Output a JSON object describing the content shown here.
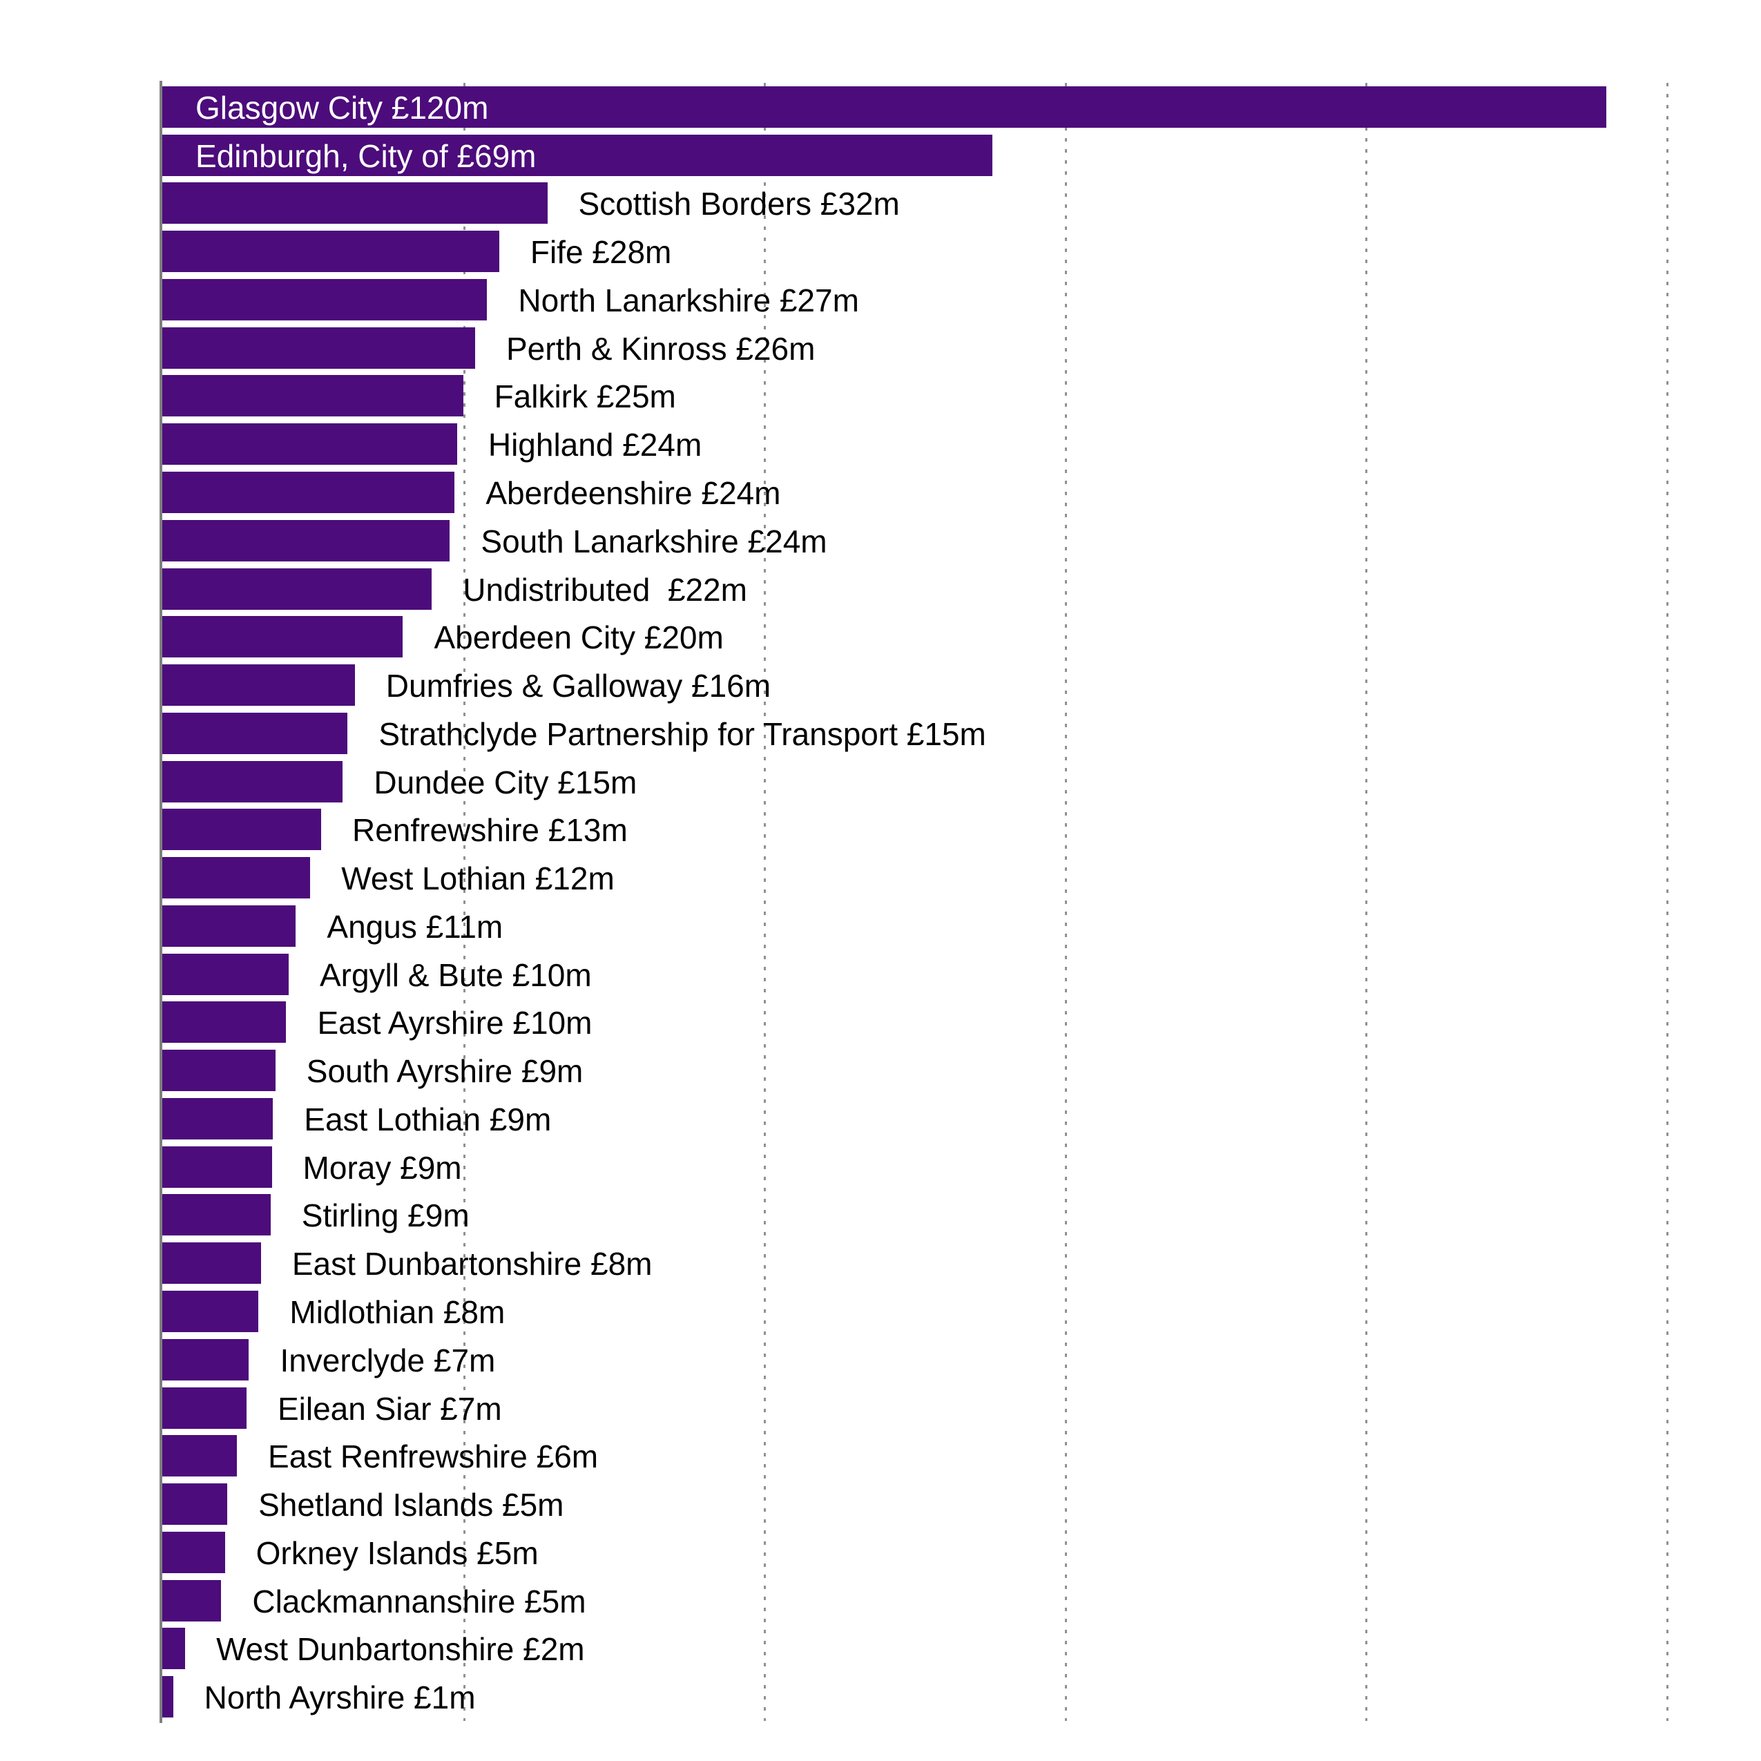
{
  "chart_data": {
    "type": "bar",
    "orientation": "horizontal",
    "title": "",
    "xlabel": "",
    "ylabel": "",
    "xlim": [
      0,
      130
    ],
    "x_gridlines": [
      25,
      50,
      75,
      100,
      125
    ],
    "gridline_style": "dotted",
    "legend": "none",
    "categories": [
      "Glasgow City",
      "Edinburgh, City of",
      "Scottish Borders",
      "Fife",
      "North Lanarkshire",
      "Perth & Kinross",
      "Falkirk",
      "Highland",
      "Aberdeenshire",
      "South Lanarkshire",
      "Undistributed",
      "Aberdeen City",
      "Dumfries & Galloway",
      "Strathclyde Partnership for Transport",
      "Dundee City",
      "Renfrewshire",
      "West Lothian",
      "Angus",
      "Argyll & Bute",
      "East Ayrshire",
      "South Ayrshire",
      "East Lothian",
      "Moray",
      "Stirling",
      "East Dunbartonshire",
      "Midlothian",
      "Inverclyde",
      "Eilean Siar",
      "East Renfrewshire",
      "Shetland Islands",
      "Orkney Islands",
      "Clackmannanshire",
      "West Dunbartonshire",
      "North Ayrshire"
    ],
    "values": [
      120,
      69,
      32,
      28,
      27,
      26,
      25,
      24.5,
      24.3,
      23.9,
      22.4,
      20,
      16,
      15.4,
      15,
      13.2,
      12.3,
      11.1,
      10.5,
      10.3,
      9.4,
      9.2,
      9.1,
      9,
      8.2,
      8,
      7.2,
      7,
      6.2,
      5.4,
      5.2,
      4.9,
      1.9,
      0.9
    ],
    "bar_labels": [
      "Glasgow City £120m",
      "Edinburgh, City of £69m",
      "Scottish Borders £32m",
      "Fife £28m",
      "North Lanarkshire £27m",
      "Perth & Kinross £26m",
      "Falkirk £25m",
      "Highland £24m",
      "Aberdeenshire £24m",
      "South Lanarkshire £24m",
      "Undistributed  £22m",
      "Aberdeen City £20m",
      "Dumfries & Galloway £16m",
      "Strathclyde Partnership for Transport £15m",
      "Dundee City £15m",
      "Renfrewshire £13m",
      "West Lothian £12m",
      "Angus £11m",
      "Argyll & Bute £10m",
      "East Ayrshire £10m",
      "South Ayrshire £9m",
      "East Lothian £9m",
      "Moray £9m",
      "Stirling £9m",
      "East Dunbartonshire £8m",
      "Midlothian £8m",
      "Inverclyde £7m",
      "Eilean Siar £7m",
      "East Renfrewshire £6m",
      "Shetland Islands £5m",
      "Orkney Islands £5m",
      "Clackmannanshire £5m",
      "West Dunbartonshire £2m",
      "North Ayrshire £1m"
    ],
    "inside_label_indices": [
      0,
      1
    ],
    "colors": {
      "bar": "#4C0C7B",
      "label_inside": "#FFFFFF",
      "label_outside": "#000000",
      "axis_line": "#7F7F7F",
      "gridline": "#919191",
      "background": "#FFFFFF"
    }
  }
}
